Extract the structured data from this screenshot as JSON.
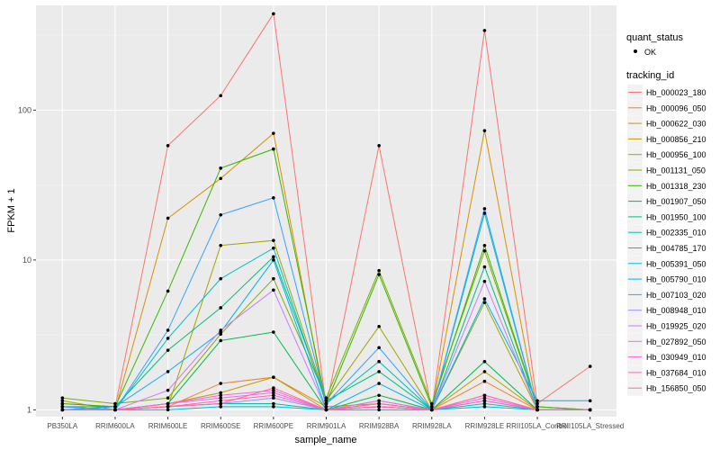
{
  "chart_data": {
    "type": "line",
    "xlabel": "sample_name",
    "ylabel": "FPKM + 1",
    "y_scale": "log10",
    "ylim": [
      0.9,
      500
    ],
    "y_ticks": [
      1,
      10,
      100
    ],
    "grid": true,
    "legend_position": "right",
    "categories": [
      "PB350LA",
      "RRIM600LA",
      "RRIM600LE",
      "RRIM600SE",
      "RRIM600PE",
      "RRIM901LA",
      "RRIM928BA",
      "RRIM928LA",
      "RRIM928LE",
      "RRII105LA_Control",
      "RRII105LA_Stressed"
    ],
    "x_tick_labels": [
      "PB350LA",
      "RRIM600LA",
      "RRIM600LE",
      "RRIM600SE",
      "RRIM600PE",
      "RRIM901LA",
      "RRIM928BA",
      "RRIM928LA",
      "RRIM928LE",
      "RRII105LA_Control",
      "RRII105LA_Stressed"
    ],
    "quant_legend": {
      "title": "quant_status",
      "items": [
        "OK"
      ]
    },
    "series_legend_title": "tracking_id",
    "series": [
      {
        "name": "Hb_000023_180",
        "color": "#F8766D",
        "values": [
          1.1,
          1.05,
          58,
          125,
          440,
          1.05,
          58,
          1.0,
          340,
          1.1,
          1.95
        ]
      },
      {
        "name": "Hb_000096_050",
        "color": "#EA8331",
        "values": [
          1.0,
          1.0,
          1.05,
          1.5,
          1.65,
          1.0,
          1.15,
          1.0,
          1.55,
          1.0,
          1.0
        ]
      },
      {
        "name": "Hb_000622_030",
        "color": "#D89000",
        "values": [
          1.05,
          1.0,
          19,
          35,
          70,
          1.0,
          1.05,
          1.0,
          73,
          1.0,
          1.0
        ]
      },
      {
        "name": "Hb_000856_210",
        "color": "#C09B00",
        "values": [
          1.0,
          1.0,
          1.1,
          1.3,
          1.65,
          1.05,
          1.1,
          1.0,
          1.8,
          1.0,
          1.0
        ]
      },
      {
        "name": "Hb_000956_100",
        "color": "#A3A500",
        "values": [
          1.15,
          1.0,
          1.05,
          12.5,
          13.5,
          1.15,
          3.6,
          1.0,
          5.2,
          1.0,
          1.0
        ]
      },
      {
        "name": "Hb_001131_050",
        "color": "#7CAE00",
        "values": [
          1.2,
          1.1,
          1.2,
          3.2,
          7.5,
          1.2,
          8.5,
          1.1,
          11.5,
          1.05,
          1.0
        ]
      },
      {
        "name": "Hb_001318_230",
        "color": "#39B600",
        "values": [
          1.1,
          1.05,
          6.2,
          41,
          55,
          1.1,
          8.0,
          1.05,
          12.5,
          1.05,
          1.0
        ]
      },
      {
        "name": "Hb_001907_050",
        "color": "#00BB4E",
        "values": [
          1.05,
          1.0,
          1.1,
          2.9,
          3.3,
          1.0,
          1.25,
          1.0,
          2.1,
          1.0,
          1.0
        ]
      },
      {
        "name": "Hb_001950_100",
        "color": "#00BF7D",
        "values": [
          1.05,
          1.05,
          2.5,
          4.8,
          10.5,
          1.15,
          1.8,
          1.0,
          9.0,
          1.0,
          1.0
        ]
      },
      {
        "name": "Hb_002335_010",
        "color": "#00C1A3",
        "values": [
          1.0,
          1.0,
          1.05,
          1.1,
          1.1,
          1.0,
          1.05,
          1.0,
          1.1,
          1.0,
          1.0
        ]
      },
      {
        "name": "Hb_004785_170",
        "color": "#00BFC4",
        "values": [
          1.0,
          1.0,
          3.0,
          7.5,
          12.0,
          1.1,
          2.1,
          1.0,
          20.5,
          1.0,
          1.0
        ]
      },
      {
        "name": "Hb_005391_050",
        "color": "#00BAE0",
        "values": [
          1.0,
          1.0,
          1.0,
          1.05,
          1.05,
          1.0,
          1.0,
          1.0,
          1.05,
          1.0,
          1.0
        ]
      },
      {
        "name": "Hb_005790_010",
        "color": "#00B0F6",
        "values": [
          1.0,
          1.05,
          1.8,
          3.3,
          10.0,
          1.0,
          1.5,
          1.0,
          5.5,
          1.15,
          1.15
        ]
      },
      {
        "name": "Hb_007103_020",
        "color": "#35A2FF",
        "values": [
          1.05,
          1.0,
          3.4,
          20,
          26,
          1.1,
          2.6,
          1.0,
          22,
          1.0,
          1.0
        ]
      },
      {
        "name": "Hb_008948_010",
        "color": "#9590FF",
        "values": [
          1.0,
          1.0,
          1.05,
          1.1,
          1.2,
          1.0,
          1.05,
          1.0,
          1.15,
          1.0,
          1.0
        ]
      },
      {
        "name": "Hb_019925_020",
        "color": "#C77CFF",
        "values": [
          1.0,
          1.0,
          1.35,
          3.4,
          6.3,
          1.0,
          1.15,
          1.0,
          7.2,
          1.0,
          1.0
        ]
      },
      {
        "name": "Hb_027892_050",
        "color": "#E76BF3",
        "values": [
          1.0,
          1.0,
          1.1,
          1.2,
          1.3,
          1.0,
          1.05,
          1.0,
          1.2,
          1.0,
          1.0
        ]
      },
      {
        "name": "Hb_030949_010",
        "color": "#FA62DB",
        "values": [
          1.0,
          1.0,
          1.1,
          1.25,
          1.35,
          1.0,
          1.1,
          1.0,
          1.25,
          1.0,
          1.0
        ]
      },
      {
        "name": "Hb_037684_010",
        "color": "#FF62BC",
        "values": [
          1.0,
          1.0,
          1.05,
          1.15,
          1.25,
          1.0,
          1.05,
          1.0,
          1.15,
          1.0,
          1.0
        ]
      },
      {
        "name": "Hb_156850_050",
        "color": "#FF6C91",
        "values": [
          1.0,
          1.0,
          1.05,
          1.1,
          1.4,
          1.0,
          1.1,
          1.0,
          1.25,
          1.0,
          1.0
        ]
      }
    ]
  }
}
